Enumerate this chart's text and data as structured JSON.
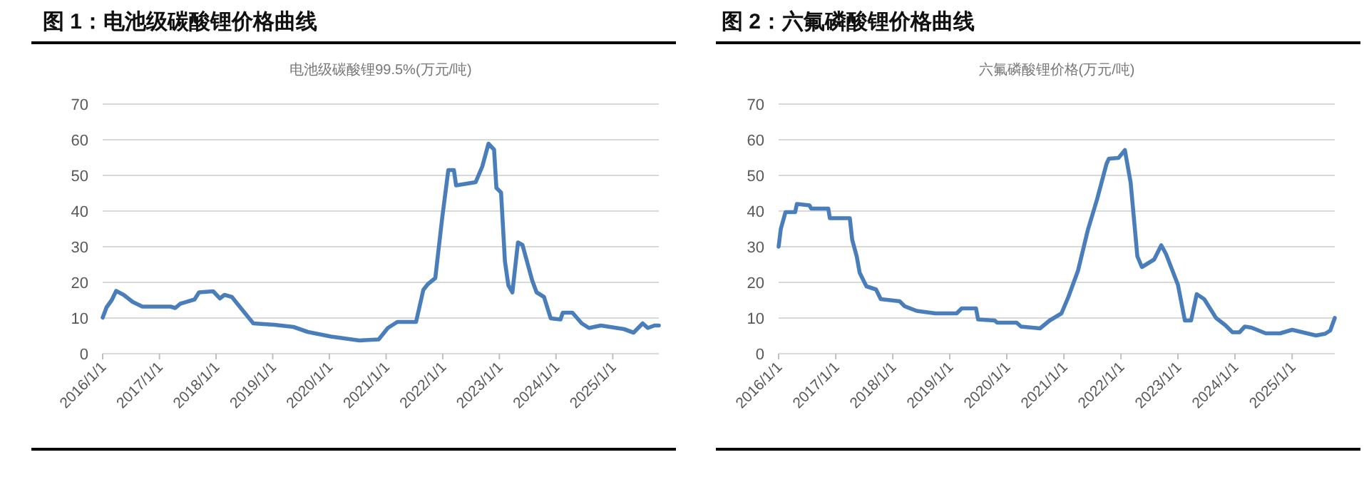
{
  "chart_data": [
    {
      "type": "line",
      "title": "图 1：电池级碳酸锂价格曲线",
      "subtitle": "电池级碳酸锂99.5%(万元/吨)",
      "grid": "y",
      "xlim": [
        "2016-01-01",
        "2025-10-25"
      ],
      "ylim": [
        0,
        70
      ],
      "yticks": [
        0,
        10,
        20,
        30,
        40,
        50,
        60,
        70
      ],
      "xticks": [
        {
          "value": "2016-01-01",
          "label": "2016/1/1"
        },
        {
          "value": "2017-01-01",
          "label": "2017/1/1"
        },
        {
          "value": "2018-01-01",
          "label": "2018/1/1"
        },
        {
          "value": "2019-01-01",
          "label": "2019/1/1"
        },
        {
          "value": "2020-01-01",
          "label": "2020/1/1"
        },
        {
          "value": "2021-01-01",
          "label": "2021/1/1"
        },
        {
          "value": "2022-01-01",
          "label": "2022/1/1"
        },
        {
          "value": "2023-01-01",
          "label": "2023/1/1"
        },
        {
          "value": "2024-01-01",
          "label": "2024/1/1"
        },
        {
          "value": "2025-01-01",
          "label": "2025/1/1"
        }
      ],
      "x": [
        "2016-01-01",
        "2016-01-26",
        "2016-02-28",
        "2016-03-28",
        "2016-05-15",
        "2016-07-13",
        "2016-09-13",
        "2017-03-14",
        "2017-04-13",
        "2017-05-15",
        "2017-08-15",
        "2017-09-13",
        "2017-12-13",
        "2018-01-26",
        "2018-02-24",
        "2018-04-13",
        "2018-06-15",
        "2018-08-29",
        "2019-01-12",
        "2019-05-15",
        "2019-08-15",
        "2020-01-12",
        "2020-07-13",
        "2020-11-14",
        "2021-01-12",
        "2021-03-14",
        "2021-07-13",
        "2021-08-29",
        "2021-09-27",
        "2021-11-14",
        "2021-12-28",
        "2022-02-06",
        "2022-03-14",
        "2022-03-28",
        "2022-08-01",
        "2022-09-13",
        "2022-10-23",
        "2022-11-28",
        "2022-12-13",
        "2023-01-12",
        "2023-02-06",
        "2023-02-28",
        "2023-03-26",
        "2023-05-01",
        "2023-05-30",
        "2023-08-01",
        "2023-08-29",
        "2023-10-16",
        "2023-11-28",
        "2024-01-30",
        "2024-02-14",
        "2024-04-16",
        "2024-06-15",
        "2024-08-01",
        "2024-10-16",
        "2025-03-14",
        "2025-05-15",
        "2025-07-13",
        "2025-08-15",
        "2025-09-27",
        "2025-10-25"
      ],
      "series": [
        {
          "color": "#4a7ebb",
          "values": [
            10.1,
            13,
            15,
            17.6,
            16.5,
            14.5,
            13.2,
            13.2,
            12.8,
            14,
            15.2,
            17.2,
            17.5,
            15.5,
            16.5,
            15.9,
            12.5,
            8.5,
            8.1,
            7.5,
            6.1,
            4.8,
            3.7,
            4,
            7.2,
            8.9,
            8.9,
            17.9,
            19.5,
            21.2,
            37.9,
            51.5,
            51.5,
            47.2,
            48.1,
            52.5,
            58.9,
            57.2,
            46.5,
            45.2,
            25.9,
            19.2,
            17.2,
            31.2,
            30.5,
            20.5,
            17.2,
            15.9,
            9.9,
            9.6,
            11.5,
            11.5,
            8.5,
            7.2,
            7.9,
            6.9,
            5.9,
            8.5,
            7.2,
            7.9,
            7.9
          ]
        }
      ]
    },
    {
      "type": "line",
      "title": "图 2：六氟磷酸锂价格曲线",
      "subtitle": "六氟磷酸锂价格(万元/吨)",
      "grid": "y",
      "xlim": [
        "2016-01-01",
        "2025-10-01"
      ],
      "ylim": [
        0,
        70
      ],
      "yticks": [
        0,
        10,
        20,
        30,
        40,
        50,
        60,
        70
      ],
      "xticks": [
        {
          "value": "2016-01-01",
          "label": "2016/1/1"
        },
        {
          "value": "2017-01-01",
          "label": "2017/1/1"
        },
        {
          "value": "2018-01-01",
          "label": "2018/1/1"
        },
        {
          "value": "2019-01-01",
          "label": "2019/1/1"
        },
        {
          "value": "2020-01-01",
          "label": "2020/1/1"
        },
        {
          "value": "2021-01-01",
          "label": "2021/1/1"
        },
        {
          "value": "2022-01-01",
          "label": "2022/1/1"
        },
        {
          "value": "2023-01-01",
          "label": "2023/1/1"
        },
        {
          "value": "2024-01-01",
          "label": "2024/1/1"
        },
        {
          "value": "2025-01-01",
          "label": "2025/1/1"
        }
      ],
      "x": [
        "2016-01-01",
        "2016-01-15",
        "2016-02-14",
        "2016-04-16",
        "2016-04-27",
        "2016-07-16",
        "2016-07-28",
        "2016-11-14",
        "2016-11-24",
        "2017-04-01",
        "2017-04-16",
        "2017-05-15",
        "2017-06-03",
        "2017-07-16",
        "2017-09-16",
        "2017-10-16",
        "2018-02-14",
        "2018-03-18",
        "2018-06-03",
        "2018-10-01",
        "2019-02-14",
        "2019-03-18",
        "2019-06-18",
        "2019-07-01",
        "2019-10-16",
        "2019-10-31",
        "2020-03-04",
        "2020-04-01",
        "2020-08-01",
        "2020-10-01",
        "2020-12-16",
        "2021-01-30",
        "2021-04-01",
        "2021-06-03",
        "2021-08-01",
        "2021-10-01",
        "2021-10-16",
        "2021-12-16",
        "2022-01-26",
        "2022-03-04",
        "2022-04-16",
        "2022-05-15",
        "2022-08-01",
        "2022-09-16",
        "2022-10-16",
        "2023-01-01",
        "2023-02-14",
        "2023-03-26",
        "2023-05-01",
        "2023-06-18",
        "2023-09-02",
        "2023-10-31",
        "2023-12-16",
        "2024-01-30",
        "2024-03-04",
        "2024-04-16",
        "2024-07-16",
        "2024-10-16",
        "2025-01-01",
        "2025-06-03",
        "2025-08-01",
        "2025-09-02",
        "2025-10-01"
      ],
      "series": [
        {
          "color": "#4a7ebb",
          "values": [
            30,
            35,
            39.7,
            39.7,
            42,
            41.6,
            40.7,
            40.7,
            38,
            38,
            32,
            27.3,
            22.7,
            18.9,
            18,
            15.3,
            14.7,
            13.3,
            12,
            11.3,
            11.3,
            12.7,
            12.7,
            9.6,
            9.3,
            8.7,
            8.7,
            7.6,
            7.1,
            9.3,
            11.3,
            16,
            23.3,
            34.7,
            43.3,
            53.3,
            54.7,
            54.9,
            57.1,
            48,
            27.3,
            24.3,
            26.4,
            30.4,
            28,
            19.3,
            9.3,
            9.3,
            16.7,
            15.3,
            10,
            8,
            6,
            6,
            7.6,
            7.3,
            5.7,
            5.7,
            6.7,
            5.1,
            5.6,
            6.5,
            10
          ]
        }
      ]
    }
  ]
}
